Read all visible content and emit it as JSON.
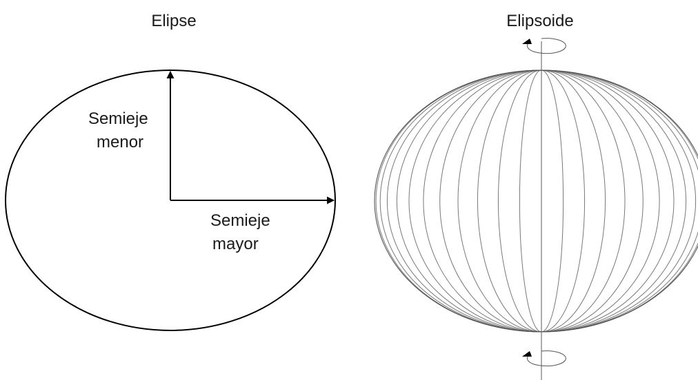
{
  "left": {
    "title": "Elipse",
    "minor_axis_label": [
      "Semieje",
      "menor"
    ],
    "major_axis_label": [
      "Semieje",
      "mayor"
    ]
  },
  "right": {
    "title": "Elipsoide"
  }
}
